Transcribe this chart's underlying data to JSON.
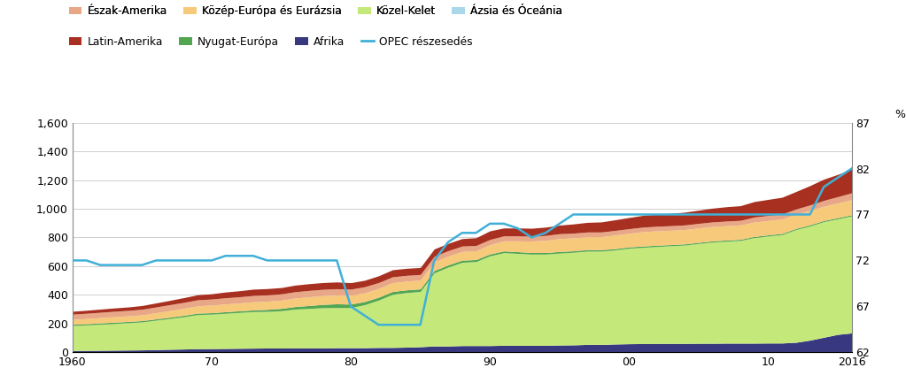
{
  "years": [
    1960,
    1961,
    1962,
    1963,
    1964,
    1965,
    1966,
    1967,
    1968,
    1969,
    1970,
    1971,
    1972,
    1973,
    1974,
    1975,
    1976,
    1977,
    1978,
    1979,
    1980,
    1981,
    1982,
    1983,
    1984,
    1985,
    1986,
    1987,
    1988,
    1989,
    1990,
    1991,
    1992,
    1993,
    1994,
    1995,
    1996,
    1997,
    1998,
    1999,
    2000,
    2001,
    2002,
    2003,
    2004,
    2005,
    2006,
    2007,
    2008,
    2009,
    2010,
    2011,
    2012,
    2013,
    2014,
    2015,
    2016
  ],
  "azsia_oceania": [
    4,
    4,
    4,
    4,
    4,
    4,
    4,
    4,
    4,
    4,
    4,
    4,
    4,
    4,
    4,
    4,
    4,
    4,
    4,
    4,
    4,
    4,
    4,
    4,
    4,
    4,
    4,
    4,
    4,
    4,
    4,
    4,
    4,
    4,
    4,
    4,
    4,
    5,
    5,
    5,
    5,
    5,
    5,
    5,
    5,
    5,
    5,
    5,
    5,
    5,
    5,
    5,
    5,
    5,
    5,
    5,
    5
  ],
  "afrika": [
    8,
    9,
    10,
    11,
    12,
    13,
    15,
    17,
    19,
    21,
    22,
    23,
    24,
    25,
    26,
    26,
    27,
    27,
    27,
    28,
    28,
    28,
    30,
    30,
    32,
    35,
    40,
    40,
    43,
    43,
    43,
    45,
    45,
    45,
    45,
    47,
    48,
    50,
    50,
    53,
    55,
    56,
    57,
    57,
    57,
    58,
    58,
    59,
    59,
    59,
    60,
    60,
    65,
    80,
    100,
    120,
    130
  ],
  "kozel_kelet": [
    175,
    178,
    182,
    186,
    190,
    195,
    205,
    215,
    225,
    238,
    240,
    245,
    250,
    255,
    255,
    260,
    270,
    275,
    280,
    280,
    280,
    300,
    330,
    370,
    380,
    385,
    510,
    550,
    580,
    585,
    625,
    645,
    640,
    635,
    635,
    640,
    645,
    650,
    650,
    655,
    665,
    670,
    675,
    680,
    685,
    695,
    705,
    710,
    715,
    735,
    745,
    755,
    785,
    795,
    805,
    805,
    815
  ],
  "nyugat_europa": [
    8,
    8,
    9,
    9,
    9,
    9,
    9,
    9,
    10,
    10,
    10,
    11,
    11,
    11,
    14,
    16,
    18,
    20,
    23,
    26,
    24,
    22,
    20,
    20,
    19,
    18,
    16,
    15,
    15,
    14,
    13,
    12,
    12,
    11,
    11,
    11,
    10,
    10,
    10,
    9,
    9,
    9,
    9,
    8,
    8,
    8,
    8,
    8,
    8,
    8,
    8,
    8,
    8,
    8,
    8,
    8,
    8
  ],
  "kozep_europa_eurazsia": [
    35,
    36,
    37,
    38,
    39,
    40,
    43,
    46,
    49,
    51,
    53,
    54,
    55,
    57,
    57,
    57,
    59,
    61,
    61,
    61,
    61,
    61,
    61,
    61,
    61,
    61,
    61,
    61,
    61,
    61,
    65,
    70,
    75,
    80,
    85,
    90,
    90,
    90,
    90,
    95,
    95,
    100,
    100,
    100,
    100,
    100,
    100,
    100,
    100,
    100,
    100,
    100,
    100,
    100,
    100,
    102,
    105
  ],
  "eszak_amerika": [
    36,
    37,
    37,
    38,
    38,
    39,
    40,
    41,
    41,
    42,
    42,
    43,
    43,
    44,
    44,
    44,
    44,
    44,
    44,
    44,
    43,
    42,
    41,
    41,
    40,
    39,
    38,
    38,
    37,
    37,
    36,
    35,
    35,
    34,
    34,
    34,
    33,
    33,
    33,
    32,
    32,
    32,
    32,
    32,
    32,
    32,
    32,
    32,
    32,
    35,
    35,
    35,
    35,
    38,
    40,
    44,
    48
  ],
  "latin_amerika": [
    20,
    21,
    22,
    23,
    24,
    26,
    28,
    30,
    33,
    35,
    37,
    40,
    42,
    44,
    44,
    44,
    46,
    47,
    47,
    47,
    45,
    45,
    47,
    49,
    49,
    49,
    51,
    51,
    52,
    54,
    60,
    55,
    55,
    55,
    58,
    60,
    64,
    67,
    70,
    74,
    78,
    82,
    84,
    86,
    89,
    92,
    96,
    100,
    102,
    108,
    112,
    117,
    122,
    135,
    148,
    155,
    165
  ],
  "opec_percent": [
    72.0,
    72.0,
    71.5,
    71.5,
    71.5,
    71.5,
    72.0,
    72.0,
    72.0,
    72.0,
    72.0,
    72.5,
    72.5,
    72.5,
    72.0,
    72.0,
    72.0,
    72.0,
    72.0,
    72.0,
    67.0,
    66.0,
    65.0,
    65.0,
    65.0,
    65.0,
    72.0,
    74.0,
    75.0,
    75.0,
    76.0,
    76.0,
    75.5,
    74.5,
    75.0,
    76.0,
    77.0,
    77.0,
    77.0,
    77.0,
    77.0,
    77.0,
    77.0,
    77.0,
    77.0,
    77.0,
    77.0,
    77.0,
    77.0,
    77.0,
    77.0,
    77.0,
    77.0,
    77.0,
    80.0,
    81.0,
    82.0
  ],
  "colors": {
    "azsia_oceania": "#a8d8ea",
    "afrika": "#383880",
    "kozel_kelet": "#c5e87a",
    "nyugat_europa": "#52a652",
    "kozep_europa_eurazsia": "#f7c97a",
    "eszak_amerika": "#e8a888",
    "latin_amerika": "#a83020",
    "opec_line": "#40b0d8"
  },
  "left_ylim": [
    0,
    1600
  ],
  "right_ylim": [
    62,
    87
  ],
  "left_yticks": [
    0,
    200,
    400,
    600,
    800,
    1000,
    1200,
    1400,
    1600
  ],
  "right_yticks": [
    62,
    67,
    72,
    77,
    82,
    87
  ],
  "xtick_positions": [
    1960,
    1970,
    1980,
    1990,
    2000,
    2010,
    2016
  ],
  "xtick_labels": [
    "1960",
    "70",
    "80",
    "90",
    "00",
    "10",
    "2016"
  ],
  "background_color": "#ffffff",
  "grid_color": "#c8c8c8"
}
